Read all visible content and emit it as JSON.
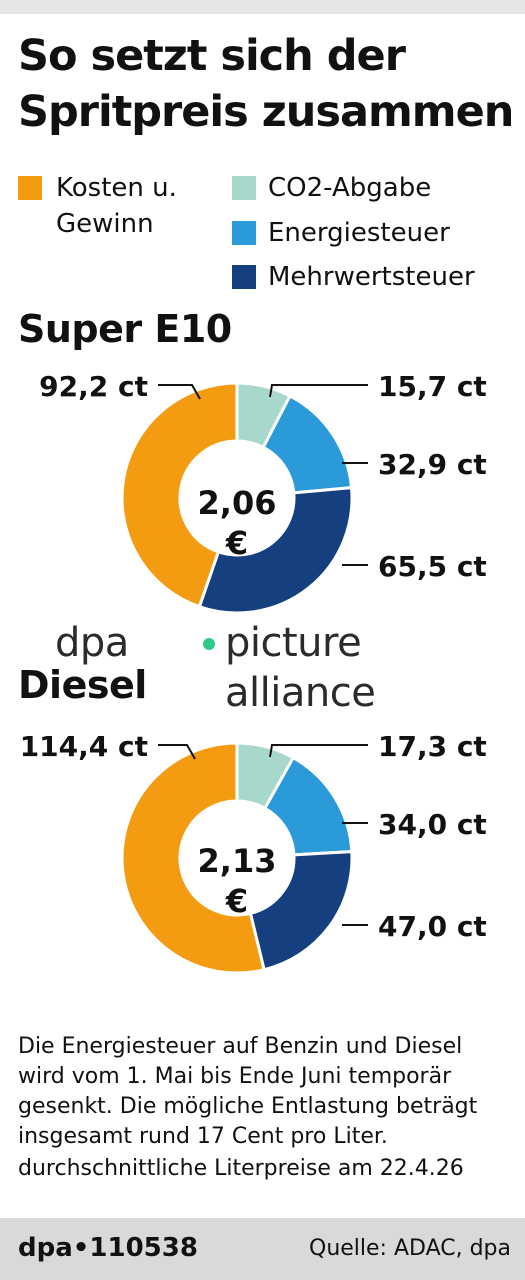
{
  "title_line1": "So setzt sich der",
  "title_line2": "Spritpreis zusammen",
  "legend": [
    {
      "label": "Kosten u.\nGewinn",
      "color": "#f39c12"
    },
    {
      "label": "CO2-Abgabe",
      "color": "#a8d8cb"
    },
    {
      "label": "Energiesteuer",
      "color": "#2a9ad9"
    },
    {
      "label": "Mehrwertsteuer",
      "color": "#163f7f"
    }
  ],
  "chart_data": [
    {
      "type": "pie",
      "title": "Super E10",
      "center_value": "2,06",
      "center_unit": "€",
      "categories": [
        "CO2-Abgabe",
        "Energiesteuer",
        "Mehrwertsteuer",
        "Kosten u. Gewinn"
      ],
      "values": [
        15.7,
        32.9,
        65.5,
        92.2
      ],
      "labels": [
        "15,7 ct",
        "32,9 ct",
        "65,5 ct",
        "92,2 ct"
      ],
      "colors": [
        "#a8d8cb",
        "#2a9ad9",
        "#163f7f",
        "#f39c12"
      ]
    },
    {
      "type": "pie",
      "title": "Diesel",
      "center_value": "2,13",
      "center_unit": "€",
      "categories": [
        "CO2-Abgabe",
        "Energiesteuer",
        "Mehrwertsteuer",
        "Kosten u. Gewinn"
      ],
      "values": [
        17.3,
        34.0,
        47.0,
        114.4
      ],
      "labels": [
        "17,3 ct",
        "34,0 ct",
        "47,0 ct",
        "114,4 ct"
      ],
      "colors": [
        "#a8d8cb",
        "#2a9ad9",
        "#163f7f",
        "#f39c12"
      ]
    }
  ],
  "watermark": {
    "part1": "dpa",
    "part2": "picture alliance"
  },
  "note": "Die Energiesteuer auf Benzin und Diesel wird vom 1. Mai bis Ende Juni temporär gesenkt. Die mögliche Entlastung beträgt insgesamt rund 17 Cent pro Liter.",
  "footnote": "durchschnittliche Literpreise am 22.4.26",
  "footer": {
    "id": "dpa•110538",
    "source": "Quelle: ADAC, dpa"
  }
}
